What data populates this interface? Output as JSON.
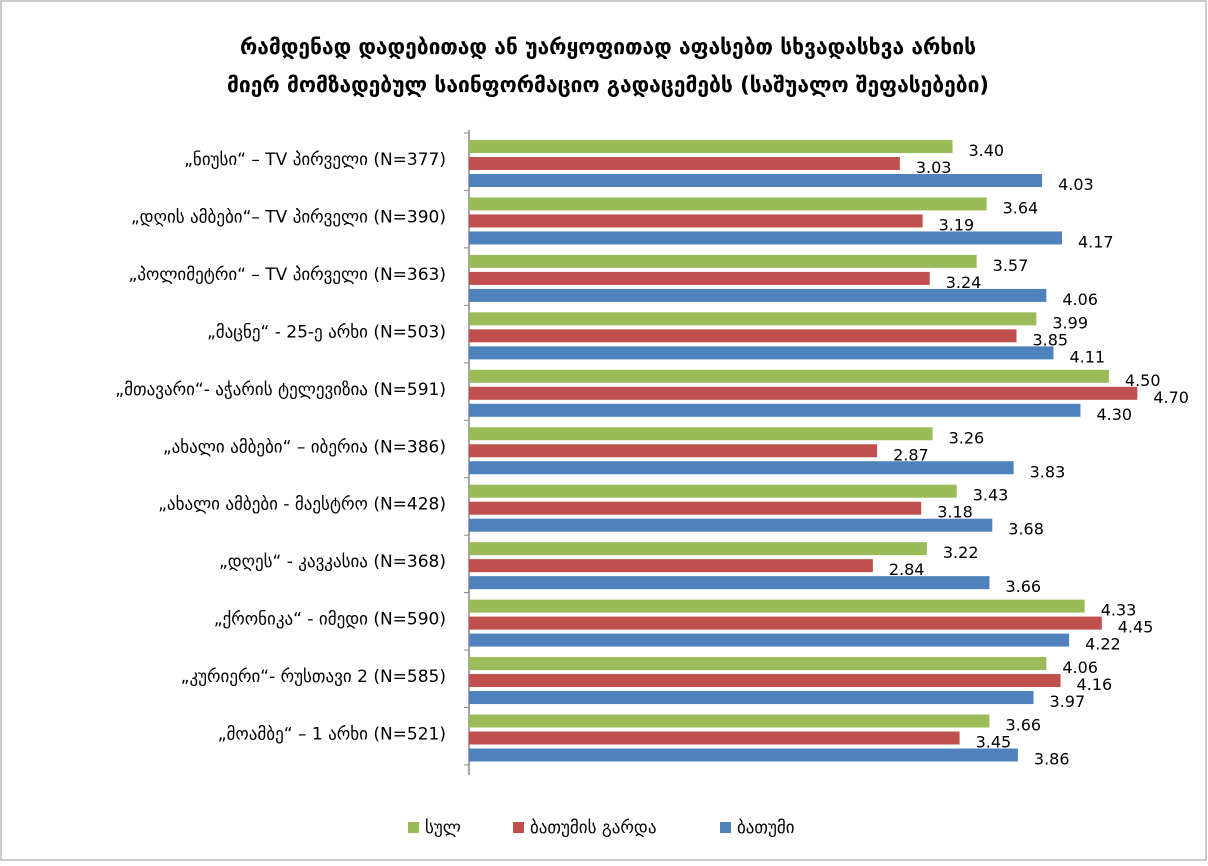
{
  "chart_data": {
    "type": "bar",
    "orientation": "horizontal",
    "title": [
      "რამდენად დადებითად ან უარყოფითად აფასებთ სხვადასხვა არხის",
      "მიერ მომზადებულ საინფორმაციო გადაცემებს (საშუალო შეფასებები)"
    ],
    "categories": [
      "„ნიუსი“ – TV პირველი (N=377)",
      "„დღის ამბები“– TV პირველი (N=390)",
      "„პოლიმეტრი“ – TV პირველი (N=363)",
      "„მაცნე“ - 25-ე არხი (N=503)",
      "„მთავარი“- აჭარის ტელევიზია (N=591)",
      "„ახალი ამბები“ – იბერია (N=386)",
      "„ახალი ამბები - მაესტრო (N=428)",
      "„დღეს“ - კავკასია (N=368)",
      "„ქრონიკა“ - იმედი (N=590)",
      "„კურიერი“- რუსთავი 2 (N=585)",
      "„მოამბე“ – 1 არხი (N=521)"
    ],
    "series": [
      {
        "name": "სულ",
        "color": "#9bbb59",
        "values": [
          3.4,
          3.64,
          3.57,
          3.99,
          4.5,
          3.26,
          3.43,
          3.22,
          4.33,
          4.06,
          3.66
        ],
        "value_labels": [
          "3.40",
          "3.64",
          "3.57",
          "3.99",
          "4.50",
          "3.26",
          "3.43",
          "3.22",
          "4.33",
          "4.06",
          "3.66"
        ]
      },
      {
        "name": "ბათუმის გარდა",
        "color": "#c0504d",
        "values": [
          3.03,
          3.19,
          3.24,
          3.85,
          4.7,
          2.87,
          3.18,
          2.84,
          4.45,
          4.16,
          3.45
        ],
        "value_labels": [
          "3.03",
          "3.19",
          "3.24",
          "3.85",
          "4.70",
          "2.87",
          "3.18",
          "2.84",
          "4.45",
          "4.16",
          "3.45"
        ]
      },
      {
        "name": "ბათუმი",
        "color": "#4f81bd",
        "values": [
          4.03,
          4.17,
          4.06,
          4.11,
          4.3,
          3.83,
          3.68,
          3.66,
          4.22,
          3.97,
          3.86
        ],
        "value_labels": [
          "4.03",
          "4.17",
          "4.06",
          "4.11",
          "4.30",
          "3.83",
          "3.68",
          "3.66",
          "4.22",
          "3.97",
          "3.86"
        ]
      }
    ],
    "legend": "bottom"
  }
}
